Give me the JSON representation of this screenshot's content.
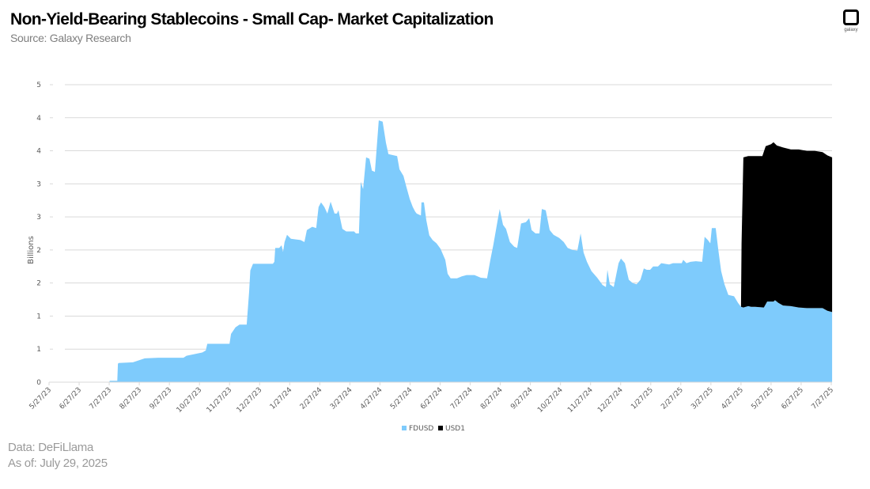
{
  "header": {
    "title": "Non-Yield-Bearing Stablecoins - Small Cap- Market Capitalization",
    "subtitle": "Source: Galaxy Research",
    "logo_text": "galaxy",
    "logo_icon": "galaxy-logo-icon"
  },
  "footer": {
    "data_source": "Data: DeFiLlama",
    "as_of": "As of: July 29, 2025"
  },
  "colors": {
    "FDUSD": "#7ecbfc",
    "USD1": "#000000",
    "grid": "#d9d9d9",
    "axis_text": "#595959"
  },
  "chart_data": {
    "type": "area",
    "stacked": true,
    "title": "Non-Yield-Bearing Stablecoins - Small Cap- Market Capitalization",
    "subtitle": "Source: Galaxy Research",
    "xlabel": "",
    "ylabel": "Billions",
    "ylim": [
      0,
      4.5
    ],
    "y_ticks": [
      0,
      0.5,
      1,
      1.5,
      2,
      2.5,
      3,
      3.5,
      4,
      4.5
    ],
    "y_tick_labels": [
      "0",
      "1",
      "1",
      "2",
      "2",
      "3",
      "3",
      "4",
      "4",
      "5"
    ],
    "x_tick_labels": [
      "5/27/23",
      "6/27/23",
      "7/27/23",
      "8/27/23",
      "9/27/23",
      "10/27/23",
      "11/27/23",
      "12/27/23",
      "1/27/24",
      "2/27/24",
      "3/27/24",
      "4/27/24",
      "5/27/24",
      "6/27/24",
      "7/27/24",
      "8/27/24",
      "9/27/24",
      "10/27/24",
      "11/27/24",
      "12/27/24",
      "1/27/25",
      "2/27/25",
      "3/27/25",
      "4/27/25",
      "5/27/25",
      "6/27/25",
      "7/27/25"
    ],
    "x_unit": "months since 5/27/23",
    "grid": true,
    "legend_position": "bottom",
    "legend": [
      "FDUSD",
      "USD1"
    ],
    "series": [
      {
        "name": "FDUSD",
        "points": [
          [
            0,
            0
          ],
          [
            2.0,
            0
          ],
          [
            2.02,
            0.02
          ],
          [
            2.27,
            0.02
          ],
          [
            2.29,
            0.28
          ],
          [
            2.32,
            0.29
          ],
          [
            2.79,
            0.3
          ],
          [
            3.18,
            0.36
          ],
          [
            3.63,
            0.37
          ],
          [
            4.47,
            0.37
          ],
          [
            4.57,
            0.4
          ],
          [
            5.1,
            0.45
          ],
          [
            5.21,
            0.48
          ],
          [
            5.26,
            0.58
          ],
          [
            6.0,
            0.58
          ],
          [
            6.05,
            0.73
          ],
          [
            6.2,
            0.83
          ],
          [
            6.33,
            0.87
          ],
          [
            6.57,
            0.87
          ],
          [
            6.65,
            1.37
          ],
          [
            6.69,
            1.69
          ],
          [
            6.78,
            1.79
          ],
          [
            7.44,
            1.79
          ],
          [
            7.49,
            1.82
          ],
          [
            7.52,
            2.03
          ],
          [
            7.65,
            2.03
          ],
          [
            7.73,
            2.07
          ],
          [
            7.78,
            1.97
          ],
          [
            7.83,
            2.12
          ],
          [
            7.91,
            2.23
          ],
          [
            8.04,
            2.17
          ],
          [
            8.36,
            2.15
          ],
          [
            8.49,
            2.12
          ],
          [
            8.57,
            2.3
          ],
          [
            8.75,
            2.35
          ],
          [
            8.88,
            2.33
          ],
          [
            8.96,
            2.65
          ],
          [
            9.04,
            2.72
          ],
          [
            9.15,
            2.65
          ],
          [
            9.25,
            2.55
          ],
          [
            9.36,
            2.73
          ],
          [
            9.49,
            2.55
          ],
          [
            9.57,
            2.55
          ],
          [
            9.62,
            2.6
          ],
          [
            9.75,
            2.32
          ],
          [
            9.88,
            2.28
          ],
          [
            10.14,
            2.28
          ],
          [
            10.2,
            2.25
          ],
          [
            10.3,
            2.25
          ],
          [
            10.36,
            3.03
          ],
          [
            10.44,
            2.92
          ],
          [
            10.54,
            3.4
          ],
          [
            10.65,
            3.38
          ],
          [
            10.73,
            3.2
          ],
          [
            10.83,
            3.18
          ],
          [
            10.96,
            3.96
          ],
          [
            11.09,
            3.94
          ],
          [
            11.2,
            3.62
          ],
          [
            11.28,
            3.45
          ],
          [
            11.38,
            3.44
          ],
          [
            11.57,
            3.42
          ],
          [
            11.65,
            3.22
          ],
          [
            11.78,
            3.12
          ],
          [
            11.88,
            2.95
          ],
          [
            11.99,
            2.77
          ],
          [
            12.09,
            2.65
          ],
          [
            12.17,
            2.58
          ],
          [
            12.22,
            2.55
          ],
          [
            12.36,
            2.52
          ],
          [
            12.38,
            2.72
          ],
          [
            12.46,
            2.72
          ],
          [
            12.54,
            2.45
          ],
          [
            12.64,
            2.22
          ],
          [
            12.75,
            2.15
          ],
          [
            12.88,
            2.1
          ],
          [
            13.01,
            2.02
          ],
          [
            13.17,
            1.85
          ],
          [
            13.25,
            1.64
          ],
          [
            13.35,
            1.57
          ],
          [
            13.56,
            1.57
          ],
          [
            13.72,
            1.6
          ],
          [
            13.88,
            1.62
          ],
          [
            14.14,
            1.62
          ],
          [
            14.35,
            1.58
          ],
          [
            14.56,
            1.57
          ],
          [
            14.67,
            1.85
          ],
          [
            14.77,
            2.08
          ],
          [
            14.9,
            2.42
          ],
          [
            14.98,
            2.62
          ],
          [
            15.09,
            2.38
          ],
          [
            15.19,
            2.32
          ],
          [
            15.32,
            2.12
          ],
          [
            15.46,
            2.05
          ],
          [
            15.56,
            2.03
          ],
          [
            15.69,
            2.4
          ],
          [
            15.85,
            2.42
          ],
          [
            15.96,
            2.48
          ],
          [
            16.04,
            2.3
          ],
          [
            16.17,
            2.25
          ],
          [
            16.3,
            2.25
          ],
          [
            16.38,
            2.62
          ],
          [
            16.51,
            2.6
          ],
          [
            16.64,
            2.3
          ],
          [
            16.77,
            2.23
          ],
          [
            16.96,
            2.18
          ],
          [
            17.11,
            2.12
          ],
          [
            17.24,
            2.03
          ],
          [
            17.4,
            2.0
          ],
          [
            17.56,
            1.99
          ],
          [
            17.67,
            2.25
          ],
          [
            17.77,
            1.96
          ],
          [
            17.88,
            1.82
          ],
          [
            18.03,
            1.68
          ],
          [
            18.22,
            1.58
          ],
          [
            18.4,
            1.47
          ],
          [
            18.51,
            1.44
          ],
          [
            18.56,
            1.7
          ],
          [
            18.64,
            1.48
          ],
          [
            18.77,
            1.44
          ],
          [
            18.93,
            1.8
          ],
          [
            19.01,
            1.87
          ],
          [
            19.14,
            1.8
          ],
          [
            19.27,
            1.55
          ],
          [
            19.4,
            1.5
          ],
          [
            19.53,
            1.48
          ],
          [
            19.66,
            1.55
          ],
          [
            19.77,
            1.72
          ],
          [
            19.87,
            1.7
          ],
          [
            19.98,
            1.7
          ],
          [
            20.08,
            1.75
          ],
          [
            20.24,
            1.75
          ],
          [
            20.35,
            1.8
          ],
          [
            20.61,
            1.78
          ],
          [
            20.74,
            1.8
          ],
          [
            21.03,
            1.8
          ],
          [
            21.08,
            1.85
          ],
          [
            21.19,
            1.8
          ],
          [
            21.32,
            1.82
          ],
          [
            21.5,
            1.83
          ],
          [
            21.71,
            1.82
          ],
          [
            21.79,
            2.2
          ],
          [
            21.9,
            2.15
          ],
          [
            21.98,
            2.1
          ],
          [
            22.03,
            2.33
          ],
          [
            22.16,
            2.33
          ],
          [
            22.24,
            2.02
          ],
          [
            22.34,
            1.68
          ],
          [
            22.45,
            1.48
          ],
          [
            22.58,
            1.32
          ],
          [
            22.77,
            1.3
          ],
          [
            22.9,
            1.2
          ],
          [
            23.0,
            1.14
          ],
          [
            23.08,
            1.13
          ],
          [
            23.24,
            1.15
          ],
          [
            23.34,
            1.14
          ],
          [
            23.47,
            1.14
          ],
          [
            23.76,
            1.13
          ],
          [
            23.87,
            1.22
          ],
          [
            24.08,
            1.22
          ],
          [
            24.13,
            1.24
          ],
          [
            24.24,
            1.2
          ],
          [
            24.4,
            1.16
          ],
          [
            24.66,
            1.15
          ],
          [
            24.92,
            1.13
          ],
          [
            25.19,
            1.12
          ],
          [
            25.45,
            1.12
          ],
          [
            25.71,
            1.12
          ],
          [
            25.87,
            1.08
          ],
          [
            26.03,
            1.06
          ]
        ]
      },
      {
        "name": "USD1",
        "note": "stacked total (FDUSD + USD1) top edge",
        "total_points": [
          [
            23.0,
            1.14
          ],
          [
            23.02,
            2.1
          ],
          [
            23.08,
            3.4
          ],
          [
            23.24,
            3.42
          ],
          [
            23.34,
            3.42
          ],
          [
            23.71,
            3.42
          ],
          [
            23.82,
            3.57
          ],
          [
            24.0,
            3.6
          ],
          [
            24.08,
            3.63
          ],
          [
            24.19,
            3.58
          ],
          [
            24.4,
            3.55
          ],
          [
            24.66,
            3.52
          ],
          [
            24.92,
            3.52
          ],
          [
            25.19,
            3.5
          ],
          [
            25.32,
            3.5
          ],
          [
            25.45,
            3.5
          ],
          [
            25.71,
            3.48
          ],
          [
            25.87,
            3.43
          ],
          [
            26.03,
            3.4
          ]
        ]
      }
    ]
  }
}
